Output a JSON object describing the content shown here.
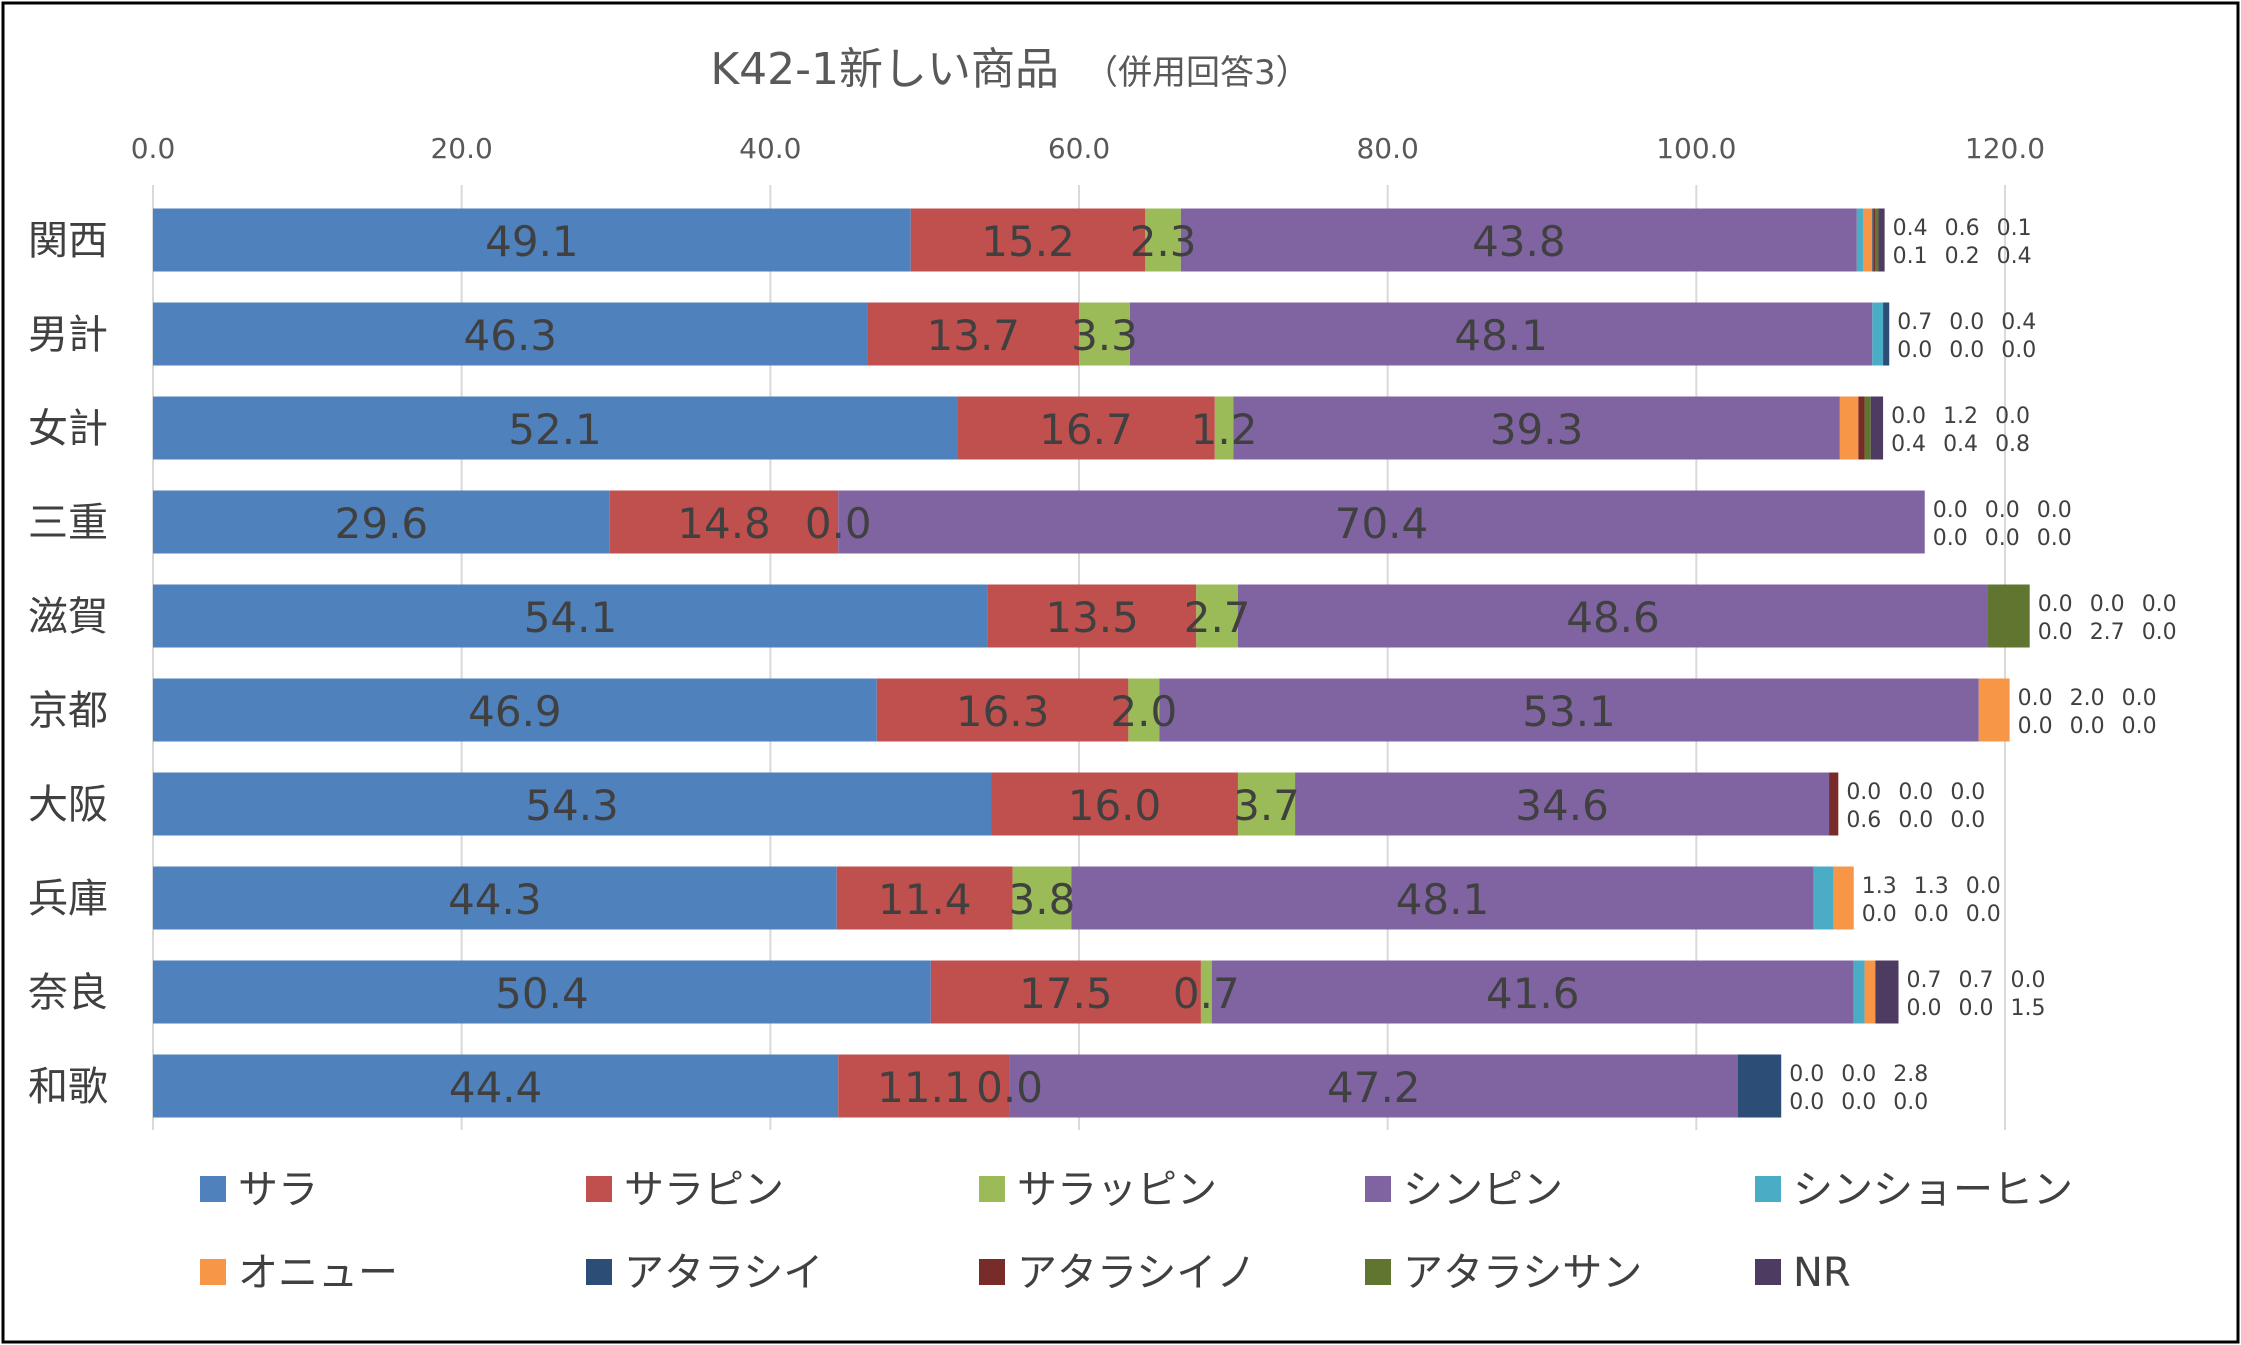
{
  "chart_data": {
    "type": "bar",
    "orientation": "horizontal",
    "stacked": true,
    "title": "K42-1新しい商品",
    "subtitle": "（併用回答3）",
    "xlim": [
      0,
      120
    ],
    "x_ticks": [
      "0.0",
      "20.0",
      "40.0",
      "60.0",
      "80.0",
      "100.0",
      "120.0"
    ],
    "grid": true,
    "legend_position": "bottom",
    "categories": [
      "関西",
      "男計",
      "女計",
      "三重",
      "滋賀",
      "京都",
      "大阪",
      "兵庫",
      "奈良",
      "和歌"
    ],
    "series": [
      {
        "name": "サラ",
        "color": "#4F81BD",
        "values": [
          49.1,
          46.3,
          52.1,
          29.6,
          54.1,
          46.9,
          54.3,
          44.3,
          50.4,
          44.4
        ]
      },
      {
        "name": "サラピン",
        "color": "#C0504D",
        "values": [
          15.2,
          13.7,
          16.7,
          14.8,
          13.5,
          16.3,
          16.0,
          11.4,
          17.5,
          11.1
        ]
      },
      {
        "name": "サラッピン",
        "color": "#9BBB59",
        "values": [
          2.3,
          3.3,
          1.2,
          0.0,
          2.7,
          2.0,
          3.7,
          3.8,
          0.7,
          0.0
        ]
      },
      {
        "name": "シンピン",
        "color": "#8064A2",
        "values": [
          43.8,
          48.1,
          39.3,
          70.4,
          48.6,
          53.1,
          34.6,
          48.1,
          41.6,
          47.2
        ]
      },
      {
        "name": "シンショーヒン",
        "color": "#4BACC6",
        "values": [
          0.4,
          0.7,
          0.0,
          0.0,
          0.0,
          0.0,
          0.0,
          1.3,
          0.7,
          0.0
        ]
      },
      {
        "name": "オニュー",
        "color": "#F79646",
        "values": [
          0.6,
          0.0,
          1.2,
          0.0,
          0.0,
          2.0,
          0.0,
          1.3,
          0.7,
          0.0
        ]
      },
      {
        "name": "アタラシイ",
        "color": "#2C4D75",
        "values": [
          0.1,
          0.4,
          0.0,
          0.0,
          0.0,
          0.0,
          0.0,
          0.0,
          0.0,
          2.8
        ]
      },
      {
        "name": "アタラシイノ",
        "color": "#772C2A",
        "values": [
          0.1,
          0.0,
          0.4,
          0.0,
          0.0,
          0.0,
          0.6,
          0.0,
          0.0,
          0.0
        ]
      },
      {
        "name": "アタラシサン",
        "color": "#5F7530",
        "values": [
          0.2,
          0.0,
          0.4,
          0.0,
          2.7,
          0.0,
          0.0,
          0.0,
          0.0,
          0.0
        ]
      },
      {
        "name": "NR",
        "color": "#4D3B62",
        "values": [
          0.4,
          0.0,
          0.8,
          0.0,
          0.0,
          0.0,
          0.0,
          0.0,
          1.5,
          0.0
        ]
      }
    ]
  }
}
